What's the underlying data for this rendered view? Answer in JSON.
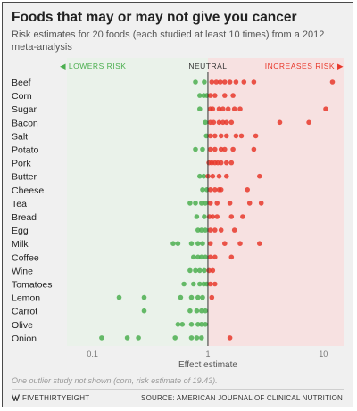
{
  "title": "Foods that may or may not give you cancer",
  "subtitle": "Risk estimates for 20 foods (each studied at least 10 times) from a 2012 meta-analysis",
  "footnote": "One outlier study not shown (corn, risk estimate of 19.43).",
  "brand": "FIVETHIRTYEIGHT",
  "source": "SOURCE: AMERICAN JOURNAL OF CLINICAL NUTRITION",
  "colors": {
    "lowers": "#4caf50",
    "increases": "#e8382b",
    "lower_zone": "#eaf2ea",
    "increase_zone": "#f7e1e1",
    "neutral_line": "#333333"
  },
  "chart_data": {
    "type": "scatter",
    "title": "Foods that may or may not give you cancer",
    "xlabel": "Effect estimate",
    "ylabel": "",
    "x_scale": "log",
    "xlim": [
      0.06,
      15
    ],
    "x_ticks": [
      0.1,
      1,
      10
    ],
    "x_tick_labels": [
      "0.1",
      "1",
      "10"
    ],
    "grid": false,
    "zones": {
      "lowers": "◀ LOWERS RISK",
      "neutral": "NEUTRAL",
      "increases": "INCREASES RISK ▶"
    },
    "neutral_value": 1,
    "categories": [
      "Beef",
      "Corn",
      "Sugar",
      "Bacon",
      "Salt",
      "Potato",
      "Pork",
      "Butter",
      "Cheese",
      "Tea",
      "Bread",
      "Egg",
      "Milk",
      "Coffee",
      "Wine",
      "Tomatoes",
      "Lemon",
      "Carrot",
      "Olive",
      "Onion"
    ],
    "values": [
      [
        0.78,
        0.93,
        1.08,
        1.18,
        1.28,
        1.4,
        1.55,
        1.75,
        2.05,
        2.5,
        12
      ],
      [
        0.85,
        0.92,
        0.98,
        1.05,
        1.15,
        1.4,
        1.65
      ],
      [
        0.85,
        1.05,
        1.1,
        1.25,
        1.35,
        1.5,
        1.7,
        1.9,
        10.5
      ],
      [
        0.95,
        1.05,
        1.12,
        1.25,
        1.35,
        1.45,
        1.6,
        4.2,
        7.5
      ],
      [
        0.97,
        1.05,
        1.15,
        1.3,
        1.45,
        1.75,
        1.95,
        2.6
      ],
      [
        0.78,
        0.9,
        1.05,
        1.15,
        1.3,
        1.4,
        1.65,
        2.5
      ],
      [
        1.02,
        1.08,
        1.15,
        1.22,
        1.3,
        1.45,
        1.6
      ],
      [
        0.85,
        0.92,
        1.0,
        1.1,
        1.25,
        1.45,
        2.8
      ],
      [
        0.9,
        0.98,
        1.05,
        1.15,
        1.25,
        1.3,
        2.2
      ],
      [
        0.7,
        0.78,
        0.88,
        0.95,
        1.05,
        1.2,
        1.55,
        2.3,
        2.9
      ],
      [
        0.8,
        0.93,
        1.03,
        1.1,
        1.2,
        1.6,
        2.0
      ],
      [
        0.82,
        0.88,
        0.95,
        1.05,
        1.15,
        1.3,
        1.7
      ],
      [
        0.5,
        0.55,
        0.72,
        0.82,
        0.9,
        1.05,
        1.4,
        1.9,
        2.8
      ],
      [
        0.75,
        0.82,
        0.88,
        0.95,
        1.05,
        1.15,
        1.6
      ],
      [
        0.7,
        0.78,
        0.85,
        0.93,
        1.02,
        1.1
      ],
      [
        0.62,
        0.75,
        0.85,
        0.92,
        0.98,
        1.05,
        1.15
      ],
      [
        0.17,
        0.28,
        0.58,
        0.72,
        0.82,
        0.9,
        1.08
      ],
      [
        0.28,
        0.7,
        0.8,
        0.88,
        0.95
      ],
      [
        0.55,
        0.6,
        0.72,
        0.82,
        0.88,
        0.95
      ],
      [
        0.12,
        0.2,
        0.25,
        0.52,
        0.72,
        0.8,
        0.88,
        1.55
      ]
    ]
  }
}
